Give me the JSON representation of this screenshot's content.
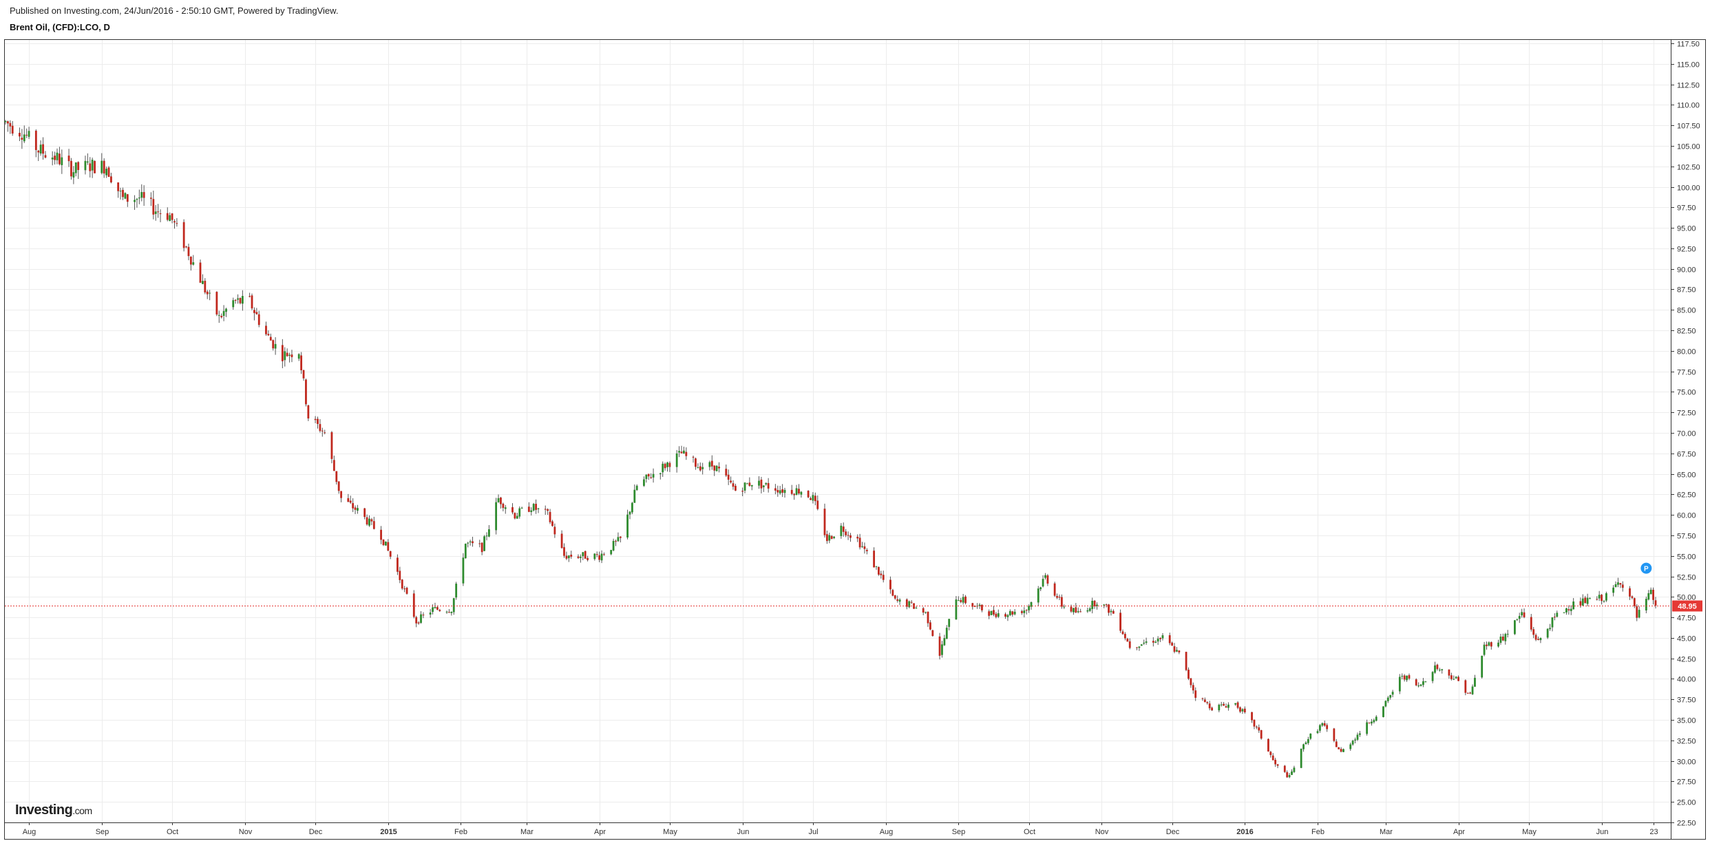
{
  "header": {
    "published": "Published on Investing.com, 24/Jun/2016 - 2:50:10 GMT, Powered by TradingView.",
    "symbol": "Brent Oil, (CFD):LCO, D"
  },
  "logo": {
    "brand": "Investing",
    "tld": ".com"
  },
  "chart_data": {
    "type": "candlestick",
    "title": "Brent Oil, (CFD):LCO, D",
    "ylim": [
      22.5,
      117.5
    ],
    "yticks": [
      "117.50",
      "115.00",
      "112.50",
      "110.00",
      "107.50",
      "105.00",
      "102.50",
      "100.00",
      "97.50",
      "95.00",
      "92.50",
      "90.00",
      "87.50",
      "85.00",
      "82.50",
      "80.00",
      "77.50",
      "75.00",
      "72.50",
      "70.00",
      "67.50",
      "65.00",
      "62.50",
      "60.00",
      "57.50",
      "55.00",
      "52.50",
      "50.00",
      "47.50",
      "45.00",
      "42.50",
      "40.00",
      "37.50",
      "35.00",
      "32.50",
      "30.00",
      "27.50",
      "25.00",
      "22.50"
    ],
    "xticks": [
      "Aug",
      "Sep",
      "Oct",
      "Nov",
      "Dec",
      "2015",
      "Feb",
      "Mar",
      "Apr",
      "May",
      "Jun",
      "Jul",
      "Aug",
      "Sep",
      "Oct",
      "Nov",
      "Dec",
      "2016",
      "Feb",
      "Mar",
      "Apr",
      "May",
      "Jun",
      "23"
    ],
    "bold_xticks": [
      "2015",
      "2016"
    ],
    "last_price": "48.95",
    "last_value": 48.95,
    "marker_label": "P",
    "colors": {
      "up": "#2e8b2e",
      "down": "#c0281e",
      "wick": "#555555",
      "price_line": "#e53935",
      "marker": "#2196f3",
      "grid": "#ececec"
    },
    "path": [
      [
        "2014-07-22",
        107.9
      ],
      [
        "2014-07-30",
        106.5
      ],
      [
        "2014-08-05",
        104.5
      ],
      [
        "2014-08-13",
        103.5
      ],
      [
        "2014-08-20",
        102
      ],
      [
        "2014-08-27",
        102.6
      ],
      [
        "2014-09-03",
        102.5
      ],
      [
        "2014-09-10",
        98.5
      ],
      [
        "2014-09-17",
        98.7
      ],
      [
        "2014-09-24",
        97.2
      ],
      [
        "2014-09-30",
        96.5
      ],
      [
        "2014-10-08",
        92
      ],
      [
        "2014-10-15",
        87.5
      ],
      [
        "2014-10-21",
        84
      ],
      [
        "2014-10-27",
        86
      ],
      [
        "2014-11-03",
        86
      ],
      [
        "2014-11-10",
        82
      ],
      [
        "2014-11-17",
        79.5
      ],
      [
        "2014-11-24",
        80
      ],
      [
        "2014-11-28",
        72
      ],
      [
        "2014-12-05",
        70
      ],
      [
        "2014-12-12",
        62
      ],
      [
        "2014-12-19",
        60.5
      ],
      [
        "2014-12-29",
        57.5
      ],
      [
        "2015-01-05",
        53
      ],
      [
        "2015-01-13",
        47
      ],
      [
        "2015-01-20",
        48.5
      ],
      [
        "2015-01-28",
        48.5
      ],
      [
        "2015-02-03",
        56.5
      ],
      [
        "2015-02-10",
        56
      ],
      [
        "2015-02-17",
        62
      ],
      [
        "2015-02-24",
        60
      ],
      [
        "2015-03-03",
        61
      ],
      [
        "2015-03-10",
        60
      ],
      [
        "2015-03-17",
        55
      ],
      [
        "2015-03-23",
        55
      ],
      [
        "2015-04-01",
        55
      ],
      [
        "2015-04-10",
        57
      ],
      [
        "2015-04-17",
        63.5
      ],
      [
        "2015-04-24",
        65
      ],
      [
        "2015-05-06",
        67.5
      ],
      [
        "2015-05-13",
        66
      ],
      [
        "2015-05-20",
        66
      ],
      [
        "2015-05-29",
        63
      ],
      [
        "2015-06-05",
        64
      ],
      [
        "2015-06-12",
        63.5
      ],
      [
        "2015-06-19",
        63
      ],
      [
        "2015-06-26",
        63
      ],
      [
        "2015-07-01",
        62
      ],
      [
        "2015-07-07",
        57
      ],
      [
        "2015-07-13",
        58.5
      ],
      [
        "2015-07-20",
        57
      ],
      [
        "2015-07-28",
        53.5
      ],
      [
        "2015-08-05",
        49.5
      ],
      [
        "2015-08-12",
        49
      ],
      [
        "2015-08-18",
        48
      ],
      [
        "2015-08-24",
        43
      ],
      [
        "2015-08-31",
        50
      ],
      [
        "2015-09-07",
        49
      ],
      [
        "2015-09-15",
        48
      ],
      [
        "2015-09-22",
        48
      ],
      [
        "2015-09-30",
        48.5
      ],
      [
        "2015-10-08",
        52.5
      ],
      [
        "2015-10-15",
        49
      ],
      [
        "2015-10-22",
        48
      ],
      [
        "2015-10-30",
        49.5
      ],
      [
        "2015-11-06",
        48
      ],
      [
        "2015-11-13",
        44
      ],
      [
        "2015-11-20",
        44.5
      ],
      [
        "2015-11-27",
        45
      ],
      [
        "2015-12-04",
        43
      ],
      [
        "2015-12-11",
        38
      ],
      [
        "2015-12-18",
        36.5
      ],
      [
        "2015-12-28",
        37
      ],
      [
        "2016-01-06",
        34
      ],
      [
        "2016-01-14",
        29.5
      ],
      [
        "2016-01-20",
        28
      ],
      [
        "2016-01-27",
        32.5
      ],
      [
        "2016-02-03",
        34.5
      ],
      [
        "2016-02-11",
        31
      ],
      [
        "2016-02-19",
        33.5
      ],
      [
        "2016-02-29",
        36.5
      ],
      [
        "2016-03-08",
        40.5
      ],
      [
        "2016-03-15",
        39
      ],
      [
        "2016-03-22",
        41.5
      ],
      [
        "2016-03-31",
        40
      ],
      [
        "2016-04-06",
        38
      ],
      [
        "2016-04-12",
        44
      ],
      [
        "2016-04-20",
        45
      ],
      [
        "2016-04-28",
        48
      ],
      [
        "2016-05-05",
        44.5
      ],
      [
        "2016-05-12",
        47.5
      ],
      [
        "2016-05-19",
        49
      ],
      [
        "2016-05-26",
        49.5
      ],
      [
        "2016-06-03",
        50
      ],
      [
        "2016-06-09",
        52
      ],
      [
        "2016-06-14",
        49.5
      ],
      [
        "2016-06-16",
        47.5
      ],
      [
        "2016-06-22",
        50.5
      ],
      [
        "2016-06-24",
        48.95
      ]
    ]
  }
}
